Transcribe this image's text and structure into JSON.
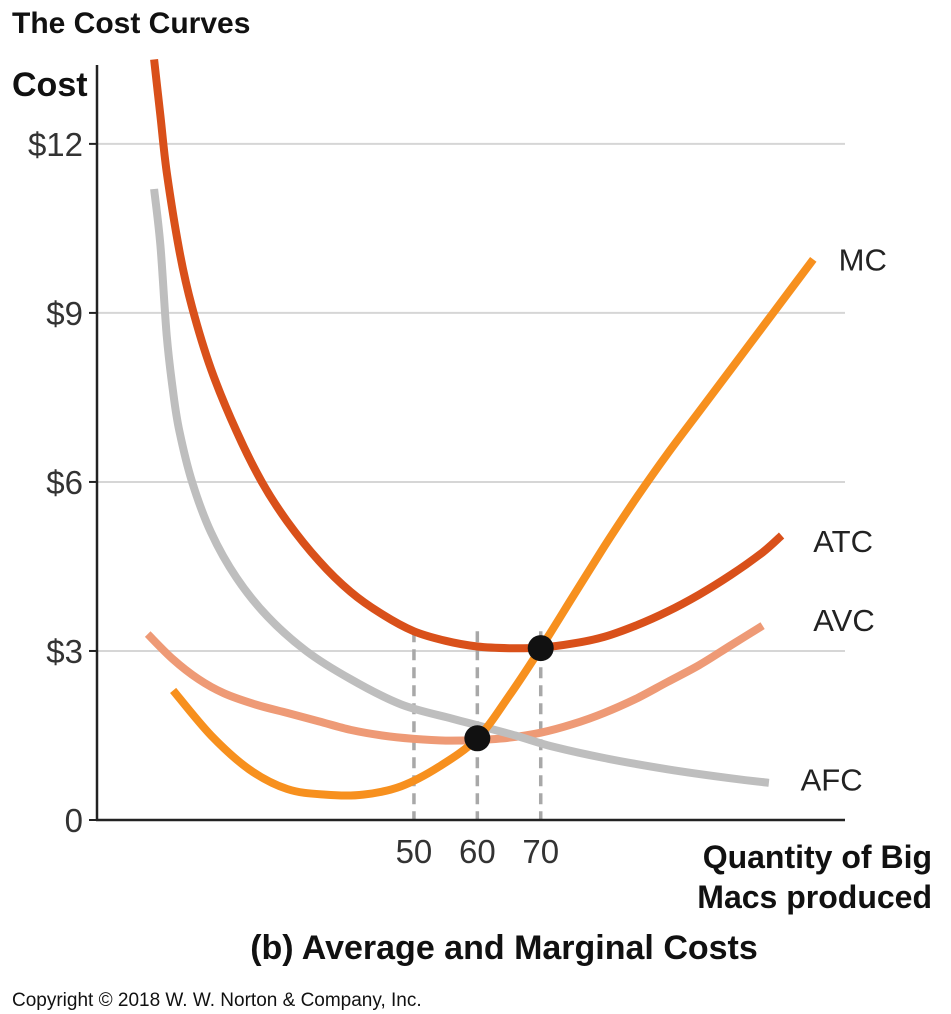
{
  "title": "The Cost Curves",
  "caption": "(b) Average and Marginal Costs",
  "copyright": "Copyright © 2018 W. W. Norton & Company, Inc.",
  "chart_data": {
    "type": "line",
    "ylabel": "Cost",
    "xlabel_lines": [
      "Quantity of Big",
      "Macs produced"
    ],
    "ylim": [
      0,
      13.4
    ],
    "xlim": [
      0,
      118
    ],
    "y_ticks": [
      {
        "value": 0,
        "label": "0"
      },
      {
        "value": 3,
        "label": "$3"
      },
      {
        "value": 6,
        "label": "$6"
      },
      {
        "value": 9,
        "label": "$9"
      },
      {
        "value": 12,
        "label": "$12"
      }
    ],
    "x_ticks": [
      {
        "value": 50,
        "label": "50"
      },
      {
        "value": 60,
        "label": "60"
      },
      {
        "value": 70,
        "label": "70"
      }
    ],
    "grid": true,
    "series": [
      {
        "name": "MC",
        "color": "#f7901e",
        "points": [
          [
            12,
            2.3
          ],
          [
            18,
            1.5
          ],
          [
            24,
            0.9
          ],
          [
            30,
            0.55
          ],
          [
            36,
            0.45
          ],
          [
            42,
            0.45
          ],
          [
            48,
            0.6
          ],
          [
            54,
            0.95
          ],
          [
            60,
            1.45
          ],
          [
            65,
            2.2
          ],
          [
            70,
            3.05
          ],
          [
            75,
            3.95
          ],
          [
            80,
            4.85
          ],
          [
            85,
            5.7
          ],
          [
            90,
            6.5
          ],
          [
            95,
            7.25
          ],
          [
            100,
            8.0
          ],
          [
            105,
            8.75
          ],
          [
            110,
            9.5
          ],
          [
            113,
            9.95
          ]
        ]
      },
      {
        "name": "ATC",
        "color": "#d9501a",
        "points": [
          [
            9,
            13.5
          ],
          [
            10,
            12.5
          ],
          [
            11,
            11.5
          ],
          [
            13,
            10.1
          ],
          [
            15,
            9.1
          ],
          [
            18,
            8.0
          ],
          [
            22,
            6.9
          ],
          [
            26,
            6.0
          ],
          [
            30,
            5.3
          ],
          [
            35,
            4.6
          ],
          [
            40,
            4.05
          ],
          [
            45,
            3.65
          ],
          [
            50,
            3.35
          ],
          [
            55,
            3.18
          ],
          [
            60,
            3.08
          ],
          [
            65,
            3.05
          ],
          [
            70,
            3.06
          ],
          [
            75,
            3.13
          ],
          [
            80,
            3.25
          ],
          [
            85,
            3.45
          ],
          [
            90,
            3.7
          ],
          [
            95,
            4.0
          ],
          [
            100,
            4.35
          ],
          [
            105,
            4.75
          ],
          [
            108,
            5.05
          ]
        ]
      },
      {
        "name": "AVC",
        "color": "#ee9a76",
        "points": [
          [
            8,
            3.3
          ],
          [
            12,
            2.85
          ],
          [
            16,
            2.5
          ],
          [
            20,
            2.25
          ],
          [
            25,
            2.05
          ],
          [
            30,
            1.9
          ],
          [
            35,
            1.75
          ],
          [
            40,
            1.6
          ],
          [
            45,
            1.5
          ],
          [
            50,
            1.44
          ],
          [
            55,
            1.41
          ],
          [
            60,
            1.42
          ],
          [
            65,
            1.46
          ],
          [
            70,
            1.55
          ],
          [
            75,
            1.7
          ],
          [
            80,
            1.9
          ],
          [
            85,
            2.15
          ],
          [
            90,
            2.45
          ],
          [
            95,
            2.75
          ],
          [
            100,
            3.1
          ],
          [
            105,
            3.45
          ]
        ]
      },
      {
        "name": "AFC",
        "color": "#bebebe",
        "points": [
          [
            9,
            11.2
          ],
          [
            10,
            10.2
          ],
          [
            11,
            8.6
          ],
          [
            12,
            7.6
          ],
          [
            13,
            6.9
          ],
          [
            15,
            6.0
          ],
          [
            18,
            5.1
          ],
          [
            22,
            4.3
          ],
          [
            27,
            3.6
          ],
          [
            33,
            3.0
          ],
          [
            40,
            2.5
          ],
          [
            48,
            2.05
          ],
          [
            56,
            1.8
          ],
          [
            60,
            1.68
          ],
          [
            66,
            1.5
          ],
          [
            72,
            1.3
          ],
          [
            80,
            1.1
          ],
          [
            90,
            0.9
          ],
          [
            100,
            0.74
          ],
          [
            106,
            0.66
          ]
        ]
      }
    ],
    "markers": [
      {
        "x": 60,
        "y": 1.45
      },
      {
        "x": 70,
        "y": 3.05
      }
    ],
    "dashed_guides": [
      {
        "x": 50,
        "y_top": 3.35
      },
      {
        "x": 60,
        "y_top": 3.35
      },
      {
        "x": 70,
        "y_top": 3.35
      }
    ],
    "curve_labels": [
      {
        "text": "MC",
        "x": 117,
        "y": 9.95
      },
      {
        "text": "ATC",
        "x": 113,
        "y": 4.95
      },
      {
        "text": "AVC",
        "x": 113,
        "y": 3.55
      },
      {
        "text": "AFC",
        "x": 111,
        "y": 0.72
      }
    ]
  }
}
